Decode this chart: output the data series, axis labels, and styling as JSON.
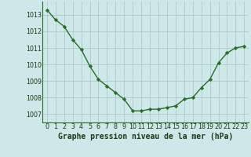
{
  "x": [
    0,
    1,
    2,
    3,
    4,
    5,
    6,
    7,
    8,
    9,
    10,
    11,
    12,
    13,
    14,
    15,
    16,
    17,
    18,
    19,
    20,
    21,
    22,
    23
  ],
  "y": [
    1013.3,
    1012.7,
    1012.3,
    1011.5,
    1010.9,
    1009.9,
    1009.1,
    1008.7,
    1008.3,
    1007.9,
    1007.2,
    1007.2,
    1007.3,
    1007.3,
    1007.4,
    1007.5,
    1007.9,
    1008.0,
    1008.6,
    1009.1,
    1010.1,
    1010.7,
    1011.0,
    1011.1
  ],
  "line_color": "#2d6a2d",
  "marker": "D",
  "marker_size": 2.2,
  "bg_color": "#cce8e8",
  "grid_color": "#b0c8c8",
  "xlabel": "Graphe pression niveau de la mer (hPa)",
  "xlabel_color": "#1a3a1a",
  "tick_label_color": "#1a3a1a",
  "ylim": [
    1006.5,
    1013.8
  ],
  "xlim": [
    -0.5,
    23.5
  ],
  "yticks": [
    1007,
    1008,
    1009,
    1010,
    1011,
    1012,
    1013
  ],
  "xticks": [
    0,
    1,
    2,
    3,
    4,
    5,
    6,
    7,
    8,
    9,
    10,
    11,
    12,
    13,
    14,
    15,
    16,
    17,
    18,
    19,
    20,
    21,
    22,
    23
  ],
  "line_width": 1.0,
  "font_size_ticks": 5.8,
  "font_size_xlabel": 7.0
}
